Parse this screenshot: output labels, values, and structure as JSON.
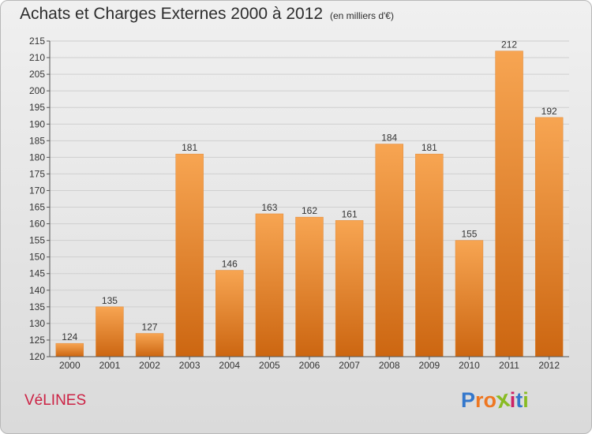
{
  "header": {
    "title": "Achats et Charges Externes 2000 à 2012",
    "subtitle": "(en milliers d'€)"
  },
  "footer": {
    "commune": "VéLINES",
    "logo_text": "Proxiti"
  },
  "colors": {
    "bar_top": "#f7a552",
    "bar_bottom": "#cc6611",
    "commune": "#cc2244",
    "logo_letters": [
      "#3377cc",
      "#ee7722",
      "#ee7722",
      "#88bb22",
      "#cc2266",
      "#3377cc",
      "#88bb22"
    ]
  },
  "chart_data": {
    "type": "bar",
    "title": "Achats et Charges Externes 2000 à 2012",
    "subtitle": "(en milliers d'€)",
    "categories": [
      "2000",
      "2001",
      "2002",
      "2003",
      "2004",
      "2005",
      "2006",
      "2007",
      "2008",
      "2009",
      "2010",
      "2011",
      "2012"
    ],
    "values": [
      124,
      135,
      127,
      181,
      146,
      163,
      162,
      161,
      184,
      181,
      155,
      212,
      192
    ],
    "ylim": [
      120,
      215
    ],
    "yticks": [
      120,
      125,
      130,
      135,
      140,
      145,
      150,
      155,
      160,
      165,
      170,
      175,
      180,
      185,
      190,
      195,
      200,
      205,
      210,
      215
    ],
    "grid": true,
    "data_labels": true
  }
}
